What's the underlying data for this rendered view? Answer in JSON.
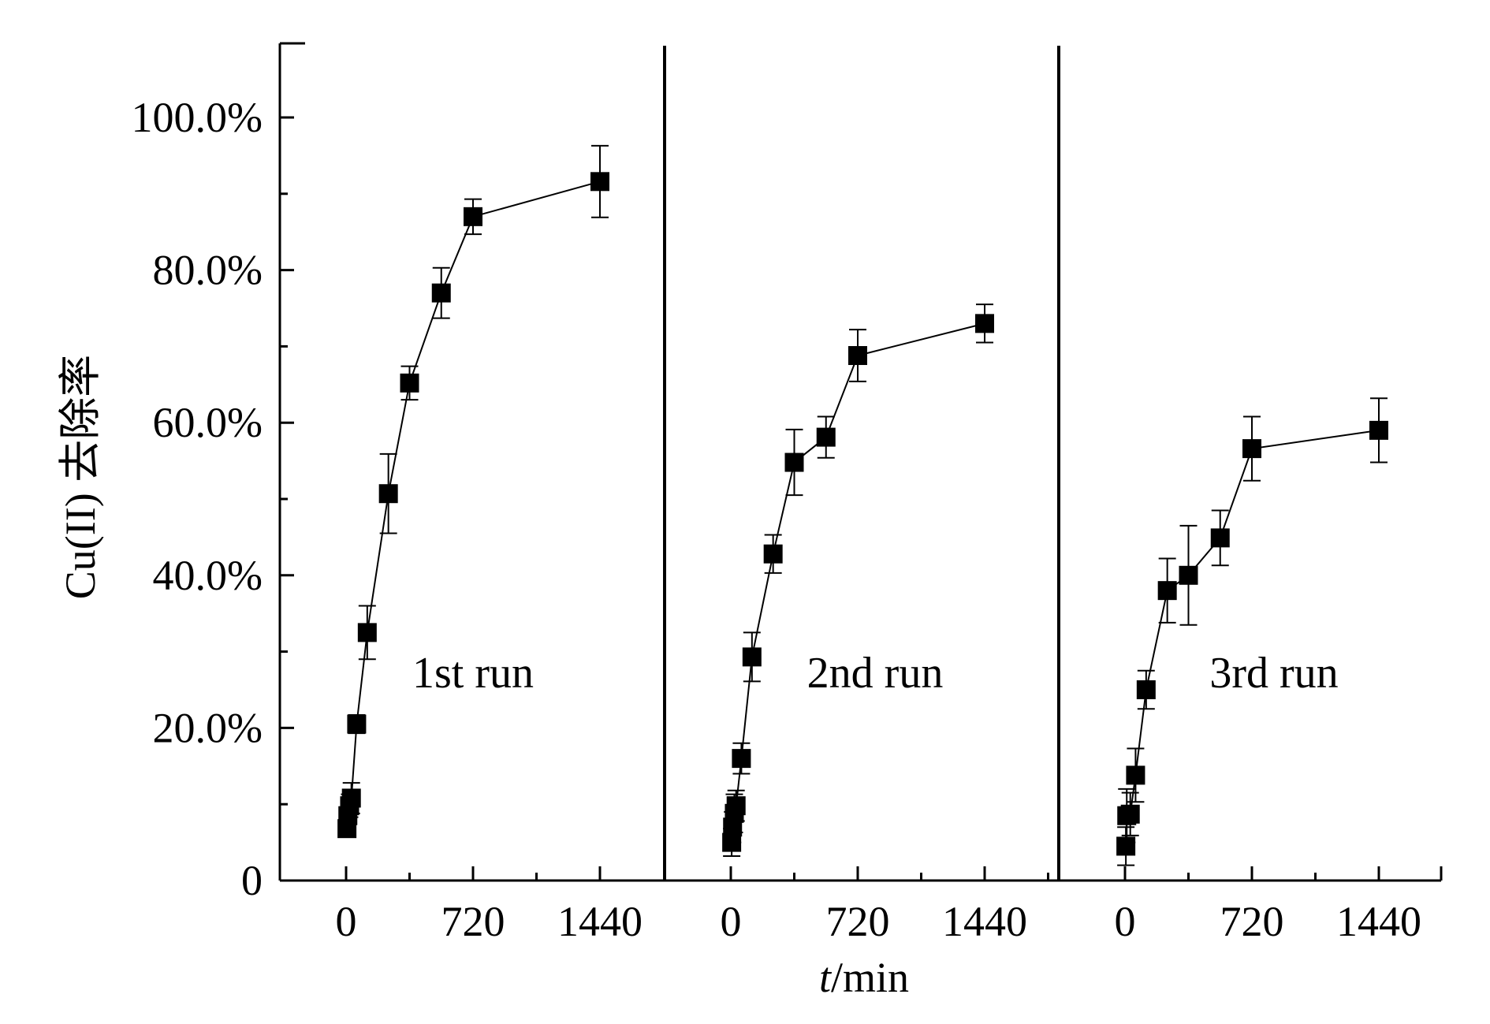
{
  "chart_data": {
    "type": "scatter",
    "ylabel": "Cu(II) 去除率",
    "xlabel_italic": "t",
    "xlabel_rest": "/min",
    "ylim": [
      0,
      110
    ],
    "xlim": [
      -250,
      1660
    ],
    "yticks": [
      0,
      20,
      40,
      60,
      80,
      100
    ],
    "ytick_labels": [
      "0",
      "20.0%",
      "40.0%",
      "60.0%",
      "80.0%",
      "100.0%"
    ],
    "xticks": [
      0,
      720,
      1440
    ],
    "xtick_labels": [
      "0",
      "720",
      "1440"
    ],
    "panels": [
      {
        "label": "1st run",
        "points": [
          {
            "x": 5,
            "y": 6.8,
            "err": 1.0
          },
          {
            "x": 10,
            "y": 8.5,
            "err": 1.0
          },
          {
            "x": 20,
            "y": 9.8,
            "err": 1.5
          },
          {
            "x": 30,
            "y": 10.8,
            "err": 2.0
          },
          {
            "x": 60,
            "y": 20.5,
            "err": 1.2
          },
          {
            "x": 120,
            "y": 32.5,
            "err": 3.5
          },
          {
            "x": 240,
            "y": 50.7,
            "err": 5.2
          },
          {
            "x": 360,
            "y": 65.2,
            "err": 2.2
          },
          {
            "x": 540,
            "y": 77.0,
            "err": 3.3
          },
          {
            "x": 720,
            "y": 87.0,
            "err": 2.3
          },
          {
            "x": 1440,
            "y": 91.6,
            "err": 4.7
          }
        ]
      },
      {
        "label": "2nd run",
        "points": [
          {
            "x": 5,
            "y": 5.0,
            "err": 1.8
          },
          {
            "x": 10,
            "y": 7.0,
            "err": 2.0
          },
          {
            "x": 20,
            "y": 8.8,
            "err": 2.5
          },
          {
            "x": 30,
            "y": 9.8,
            "err": 2.0
          },
          {
            "x": 60,
            "y": 16.0,
            "err": 2.0
          },
          {
            "x": 120,
            "y": 29.3,
            "err": 3.2
          },
          {
            "x": 240,
            "y": 42.8,
            "err": 2.5
          },
          {
            "x": 360,
            "y": 54.8,
            "err": 4.3
          },
          {
            "x": 540,
            "y": 58.1,
            "err": 2.7
          },
          {
            "x": 720,
            "y": 68.8,
            "err": 3.4
          },
          {
            "x": 1440,
            "y": 73.0,
            "err": 2.5
          }
        ]
      },
      {
        "label": "3rd run",
        "points": [
          {
            "x": 5,
            "y": 4.5,
            "err": 2.5
          },
          {
            "x": 10,
            "y": 8.5,
            "err": 3.5
          },
          {
            "x": 30,
            "y": 8.7,
            "err": 2.8
          },
          {
            "x": 60,
            "y": 13.8,
            "err": 3.5
          },
          {
            "x": 120,
            "y": 25.0,
            "err": 2.5
          },
          {
            "x": 240,
            "y": 38.0,
            "err": 4.2
          },
          {
            "x": 360,
            "y": 40.0,
            "err": 6.5
          },
          {
            "x": 540,
            "y": 44.9,
            "err": 3.6
          },
          {
            "x": 720,
            "y": 56.6,
            "err": 4.2
          },
          {
            "x": 1440,
            "y": 59.0,
            "err": 4.2
          }
        ]
      }
    ]
  }
}
